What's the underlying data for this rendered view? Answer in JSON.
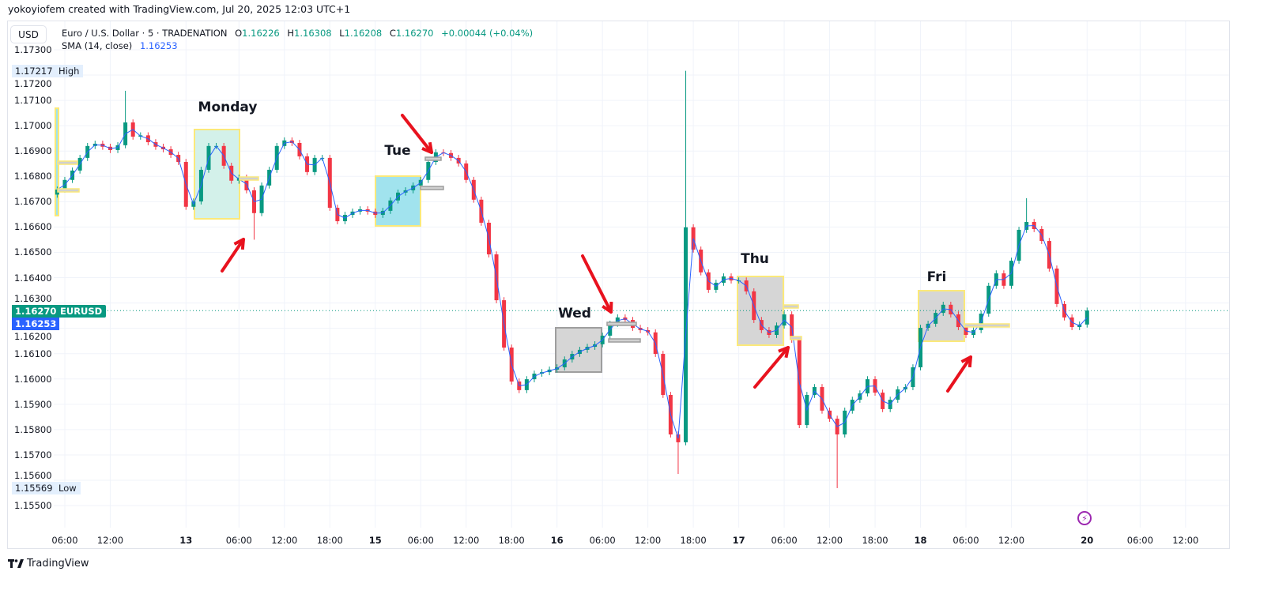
{
  "header": {
    "attribution": "yokoyiofem created with TradingView.com, Jul 20, 2025 12:03 UTC+1"
  },
  "toolbar": {
    "currency_button": "USD"
  },
  "legend": {
    "symbol": "Euro / U.S. Dollar · 5 · TRADENATION",
    "o_label": "O",
    "o_value": "1.16226",
    "h_label": "H",
    "h_value": "1.16308",
    "l_label": "L",
    "l_value": "1.16208",
    "c_label": "C",
    "c_value": "1.16270",
    "change": "+0.00044 (+0.04%)",
    "sma_label": "SMA (14, close)",
    "sma_value": "1.16253"
  },
  "price_tags": {
    "high_value": "1.17217",
    "high_label": "High",
    "low_value": "1.15569",
    "low_label": "Low",
    "current_value": "1.16270",
    "current_symbol": "EURUSD",
    "sma_value": "1.16253"
  },
  "annotations": {
    "monday": "Monday",
    "tue": "Tue",
    "wed": "Wed",
    "thu": "Thu",
    "fri": "Fri"
  },
  "footer": {
    "brand": "TradingView"
  },
  "colors": {
    "up": "#089981",
    "down": "#f23645",
    "sma": "#2962ff",
    "arrow": "#e8121e",
    "box_border": "#fbe97a",
    "alert_icon": "#9c27b0"
  },
  "icons": {
    "alert": "lightning-icon",
    "logo": "tradingview-logo-icon"
  },
  "chart_data": {
    "type": "candlestick",
    "title": "Euro / U.S. Dollar · 5 · TRADENATION",
    "ylim": [
      1.1542,
      1.1736
    ],
    "grid": true,
    "y_ticks": [
      "1.17300",
      "1.17200",
      "1.17100",
      "1.17000",
      "1.16900",
      "1.16800",
      "1.16700",
      "1.16600",
      "1.16500",
      "1.16400",
      "1.16300",
      "1.16200",
      "1.16100",
      "1.16000",
      "1.15900",
      "1.15800",
      "1.15700",
      "1.15600",
      "1.15500"
    ],
    "x_ticks": [
      {
        "label": "06:00",
        "time": "Jul 11 06:00"
      },
      {
        "label": "12:00",
        "time": "Jul 11 12:00"
      },
      {
        "label": "13",
        "time": "Jul 13 23:00",
        "day": true
      },
      {
        "label": "06:00",
        "time": "Jul 14 06:00"
      },
      {
        "label": "12:00",
        "time": "Jul 14 12:00"
      },
      {
        "label": "18:00",
        "time": "Jul 14 18:00"
      },
      {
        "label": "15",
        "time": "Jul 15 00:00",
        "day": true
      },
      {
        "label": "06:00",
        "time": "Jul 15 06:00"
      },
      {
        "label": "12:00",
        "time": "Jul 15 12:00"
      },
      {
        "label": "18:00",
        "time": "Jul 15 18:00"
      },
      {
        "label": "16",
        "time": "Jul 16 00:00",
        "day": true
      },
      {
        "label": "06:00",
        "time": "Jul 16 06:00"
      },
      {
        "label": "12:00",
        "time": "Jul 16 12:00"
      },
      {
        "label": "18:00",
        "time": "Jul 16 18:00"
      },
      {
        "label": "17",
        "time": "Jul 17 00:00",
        "day": true
      },
      {
        "label": "06:00",
        "time": "Jul 17 06:00"
      },
      {
        "label": "12:00",
        "time": "Jul 17 12:00"
      },
      {
        "label": "18:00",
        "time": "Jul 17 18:00"
      },
      {
        "label": "18",
        "time": "Jul 18 00:00",
        "day": true
      },
      {
        "label": "06:00",
        "time": "Jul 18 06:00"
      },
      {
        "label": "12:00",
        "time": "Jul 18 12:00"
      },
      {
        "label": "20",
        "time": "Jul 20 23:00",
        "day": true
      },
      {
        "label": "06:00",
        "time": "Jul 21 06:00"
      },
      {
        "label": "12:00",
        "time": "Jul 21 12:00"
      }
    ],
    "series": {
      "start": "Jul 11 05:00",
      "interval": "1h",
      "close": [
        1.16748,
        1.16786,
        1.16823,
        1.16873,
        1.1692,
        1.16929,
        1.16917,
        1.16904,
        1.16923,
        1.17013,
        1.16957,
        1.16962,
        1.16935,
        1.16917,
        1.16907,
        1.16885,
        1.16857,
        1.1668,
        1.16701,
        1.16826,
        1.1692,
        1.1692,
        1.16842,
        1.16783,
        1.16795,
        1.16745,
        1.16655,
        1.16764,
        1.16826,
        1.1692,
        1.16942,
        1.16932,
        1.16879,
        1.16817,
        1.16873,
        1.16873,
        1.16676,
        1.16623,
        1.16648,
        1.16661,
        1.1667,
        1.16661,
        1.16648,
        1.16664,
        1.16705,
        1.16736,
        1.16745,
        1.16764,
        1.16786,
        1.16857,
        1.16895,
        1.16892,
        1.16873,
        1.16851,
        1.16786,
        1.16708,
        1.16617,
        1.16492,
        1.16311,
        1.16124,
        1.1599,
        1.15956,
        1.15999,
        1.16021,
        1.16027,
        1.16037,
        1.16046,
        1.16077,
        1.16099,
        1.16115,
        1.16127,
        1.16137,
        1.16171,
        1.16218,
        1.16243,
        1.16233,
        1.16202,
        1.16193,
        1.16184,
        1.16099,
        1.15937,
        1.15781,
        1.1575,
        1.16599,
        1.16511,
        1.16421,
        1.16352,
        1.1638,
        1.16405,
        1.16389,
        1.16389,
        1.16346,
        1.16233,
        1.16193,
        1.16174,
        1.16211,
        1.16255,
        1.16155,
        1.15818,
        1.15937,
        1.15968,
        1.15875,
        1.15843,
        1.15781,
        1.15875,
        1.15918,
        1.15943,
        1.15999,
        1.15946,
        1.15881,
        1.15918,
        1.15959,
        1.15968,
        1.16046,
        1.16202,
        1.16218,
        1.16261,
        1.16293,
        1.16255,
        1.16205,
        1.16174,
        1.16193,
        1.16258,
        1.16368,
        1.16417,
        1.16368,
        1.16467,
        1.16589,
        1.1662,
        1.16592,
        1.16545,
        1.16436,
        1.16296,
        1.16243,
        1.16205,
        1.16215,
        1.1627
      ],
      "extremes": [
        {
          "index": 9,
          "high": 1.17138
        },
        {
          "index": 26,
          "low": 1.1655
        },
        {
          "index": 82,
          "low": 1.15625
        },
        {
          "index": 83,
          "high": 1.17217
        },
        {
          "index": 103,
          "low": 1.15569
        },
        {
          "index": 128,
          "high": 1.16714
        }
      ]
    },
    "sma": {
      "name": "SMA (14, close)",
      "last": 1.16253
    },
    "current_price": 1.1627
  }
}
